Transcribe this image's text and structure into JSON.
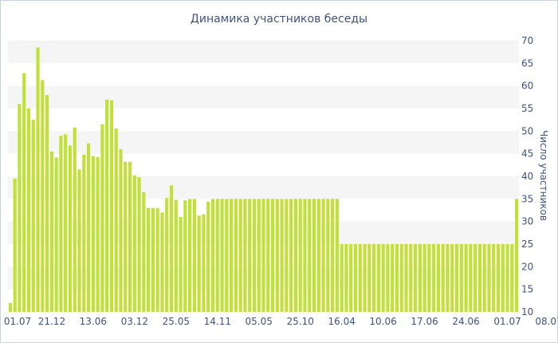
{
  "chart_data": {
    "type": "bar",
    "title": "Динамика участников беседы",
    "ylabel": "Число участников",
    "xlabel": "",
    "ylim": [
      10,
      70
    ],
    "yticks": [
      10,
      15,
      20,
      25,
      30,
      35,
      40,
      45,
      50,
      55,
      60,
      65,
      70
    ],
    "grid": "alternating horizontal bands",
    "bar_color": "#c2e03a",
    "band_color": "#f5f5f5",
    "xtick_labels": [
      {
        "index": 0,
        "label": "01.07"
      },
      {
        "index": 9,
        "label": "21.12"
      },
      {
        "index": 18,
        "label": "13.06"
      },
      {
        "index": 27,
        "label": "03.12"
      },
      {
        "index": 36,
        "label": "25.05"
      },
      {
        "index": 45,
        "label": "14.11"
      },
      {
        "index": 54,
        "label": "05.05"
      },
      {
        "index": 63,
        "label": "25.10"
      },
      {
        "index": 72,
        "label": "16.04"
      },
      {
        "index": 81,
        "label": "10.06"
      },
      {
        "index": 90,
        "label": "17.06"
      },
      {
        "index": 99,
        "label": "24.06"
      },
      {
        "index": 108,
        "label": "01.07"
      },
      {
        "index": 117,
        "label": "08.07"
      }
    ],
    "values": [
      12,
      39.5,
      56,
      62.8,
      55,
      52.5,
      68.5,
      61.3,
      58,
      45.5,
      44.2,
      49,
      49.3,
      46.8,
      50.8,
      41.5,
      44.8,
      47.3,
      44.5,
      44.3,
      51.5,
      57,
      56.8,
      50.6,
      46,
      43.2,
      43.2,
      40.2,
      39.8,
      36.5,
      33,
      33,
      33,
      32,
      35.2,
      38,
      34.8,
      31,
      34.7,
      35,
      35,
      31.3,
      31.6,
      34.4,
      35,
      35,
      35,
      35,
      35,
      35,
      35,
      35,
      35,
      35,
      35,
      35,
      35,
      35,
      35,
      35,
      35,
      35,
      35,
      35,
      35,
      35,
      35,
      35,
      35,
      35,
      35,
      35,
      25,
      25,
      25,
      25,
      25,
      25,
      25,
      25,
      25,
      25,
      25,
      25,
      25,
      25,
      25,
      25,
      25,
      25,
      25,
      25,
      25,
      25,
      25,
      25,
      25,
      25,
      25,
      25,
      25,
      25,
      25,
      25,
      25,
      25,
      25,
      25,
      25,
      25,
      35
    ]
  }
}
